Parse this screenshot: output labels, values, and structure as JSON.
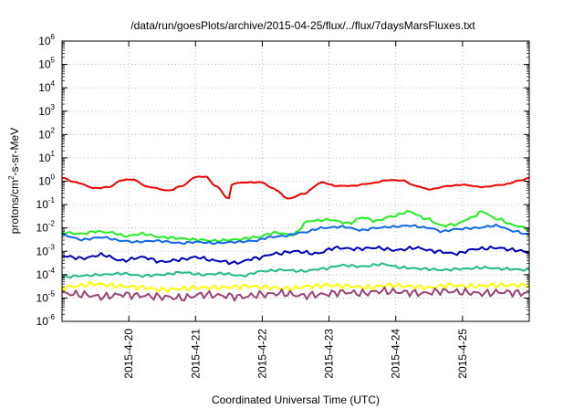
{
  "chart_data": {
    "type": "line",
    "title": "/data/run/goesPlots/archive/2015-04-25/flux/../flux/7daysMarsFluxes.txt",
    "xlabel": "Coordinated Universal Time (UTC)",
    "ylabel": {
      "prefix": "protons/cm",
      "sup": "2",
      "suffix": "-s-sr-MeV"
    },
    "y_scale": "log",
    "ylim_exp": [
      -6,
      6
    ],
    "y_tick_base": "10",
    "y_tick_exponents": [
      "6",
      "5",
      "4",
      "3",
      "2",
      "1",
      "0",
      "-1",
      "-2",
      "-3",
      "-4",
      "-5",
      "-6"
    ],
    "x_tick_labels": [
      "2015-4-20",
      "2015-4-21",
      "2015-4-22",
      "2015-4-23",
      "2015-4-24",
      "2015-4-25"
    ],
    "x_range_days": [
      0,
      7
    ],
    "x_tick_days": [
      1,
      2,
      3,
      4,
      5,
      6
    ],
    "grid": true,
    "legend": "none",
    "series_colors": [
      "#ee0000",
      "#22ee22",
      "#1166ee",
      "#0000bb",
      "#22bb88",
      "#ffff00",
      "#994477"
    ],
    "series_wobble": [
      0.02,
      0.06,
      0.05,
      0.08,
      0.06,
      0.12,
      0.18
    ],
    "series_keypoints": [
      [
        [
          0,
          0.15
        ],
        [
          0.2,
          -0.05
        ],
        [
          0.5,
          -0.3
        ],
        [
          0.7,
          -0.25
        ],
        [
          0.9,
          0.05
        ],
        [
          1.05,
          0.08
        ],
        [
          1.3,
          -0.25
        ],
        [
          1.6,
          -0.4
        ],
        [
          1.8,
          -0.2
        ],
        [
          2.0,
          0.18
        ],
        [
          2.15,
          0.2
        ],
        [
          2.3,
          -0.2
        ],
        [
          2.5,
          -0.75
        ],
        [
          2.55,
          -0.1
        ],
        [
          2.75,
          -0.05
        ],
        [
          3.0,
          -0.05
        ],
        [
          3.15,
          -0.3
        ],
        [
          3.4,
          -0.75
        ],
        [
          3.6,
          -0.55
        ],
        [
          3.9,
          -0.05
        ],
        [
          4.1,
          -0.2
        ],
        [
          4.35,
          -0.2
        ],
        [
          4.6,
          -0.1
        ],
        [
          4.9,
          0.05
        ],
        [
          5.1,
          0.03
        ],
        [
          5.3,
          -0.2
        ],
        [
          5.5,
          -0.35
        ],
        [
          5.8,
          -0.2
        ],
        [
          6.0,
          -0.15
        ],
        [
          6.3,
          -0.25
        ],
        [
          6.6,
          -0.15
        ],
        [
          6.9,
          0.05
        ],
        [
          7.0,
          0.15
        ]
      ],
      [
        [
          0,
          -2.2
        ],
        [
          0.3,
          -2.25
        ],
        [
          0.5,
          -2.15
        ],
        [
          0.75,
          -2.2
        ],
        [
          0.95,
          -2.35
        ],
        [
          1.2,
          -2.25
        ],
        [
          1.5,
          -2.4
        ],
        [
          1.8,
          -2.45
        ],
        [
          2.0,
          -2.5
        ],
        [
          2.3,
          -2.55
        ],
        [
          2.6,
          -2.5
        ],
        [
          2.9,
          -2.4
        ],
        [
          3.2,
          -2.2
        ],
        [
          3.45,
          -2.3
        ],
        [
          3.7,
          -1.7
        ],
        [
          4.0,
          -1.65
        ],
        [
          4.3,
          -1.8
        ],
        [
          4.5,
          -1.55
        ],
        [
          4.7,
          -1.7
        ],
        [
          4.95,
          -1.5
        ],
        [
          5.2,
          -1.3
        ],
        [
          5.45,
          -1.6
        ],
        [
          5.7,
          -1.9
        ],
        [
          5.9,
          -1.85
        ],
        [
          6.1,
          -1.6
        ],
        [
          6.3,
          -1.3
        ],
        [
          6.5,
          -1.6
        ],
        [
          6.8,
          -1.9
        ],
        [
          7.0,
          -2.05
        ]
      ],
      [
        [
          0,
          -2.3
        ],
        [
          0.3,
          -2.5
        ],
        [
          0.6,
          -2.4
        ],
        [
          0.9,
          -2.55
        ],
        [
          1.1,
          -2.6
        ],
        [
          1.4,
          -2.55
        ],
        [
          1.8,
          -2.65
        ],
        [
          2.0,
          -2.6
        ],
        [
          2.3,
          -2.65
        ],
        [
          2.6,
          -2.6
        ],
        [
          2.9,
          -2.55
        ],
        [
          3.1,
          -2.4
        ],
        [
          3.3,
          -2.35
        ],
        [
          3.6,
          -2.2
        ],
        [
          3.9,
          -2.0
        ],
        [
          4.2,
          -1.95
        ],
        [
          4.5,
          -2.1
        ],
        [
          4.7,
          -2.0
        ],
        [
          4.95,
          -1.95
        ],
        [
          5.2,
          -1.9
        ],
        [
          5.5,
          -2.0
        ],
        [
          5.7,
          -2.15
        ],
        [
          5.9,
          -2.05
        ],
        [
          6.2,
          -2.0
        ],
        [
          6.5,
          -1.9
        ],
        [
          6.8,
          -2.15
        ],
        [
          7.0,
          -2.3
        ]
      ],
      [
        [
          0,
          -3.2
        ],
        [
          0.3,
          -3.3
        ],
        [
          0.6,
          -3.15
        ],
        [
          0.9,
          -3.4
        ],
        [
          1.2,
          -3.25
        ],
        [
          1.5,
          -3.45
        ],
        [
          1.8,
          -3.35
        ],
        [
          2.0,
          -3.25
        ],
        [
          2.3,
          -3.4
        ],
        [
          2.6,
          -3.5
        ],
        [
          2.9,
          -3.3
        ],
        [
          3.2,
          -3.1
        ],
        [
          3.5,
          -3.0
        ],
        [
          3.8,
          -3.1
        ],
        [
          4.1,
          -2.85
        ],
        [
          4.4,
          -2.9
        ],
        [
          4.7,
          -2.85
        ],
        [
          5.0,
          -2.95
        ],
        [
          5.3,
          -2.85
        ],
        [
          5.6,
          -3.0
        ],
        [
          5.9,
          -3.1
        ],
        [
          6.2,
          -2.9
        ],
        [
          6.5,
          -2.85
        ],
        [
          6.8,
          -2.95
        ],
        [
          7.0,
          -3.05
        ]
      ],
      [
        [
          0,
          -4.1
        ],
        [
          0.3,
          -4.05
        ],
        [
          0.6,
          -4.0
        ],
        [
          0.9,
          -3.95
        ],
        [
          1.2,
          -4.05
        ],
        [
          1.5,
          -4.0
        ],
        [
          1.8,
          -3.9
        ],
        [
          2.1,
          -4.0
        ],
        [
          2.4,
          -3.95
        ],
        [
          2.7,
          -4.05
        ],
        [
          3.0,
          -3.85
        ],
        [
          3.3,
          -3.8
        ],
        [
          3.6,
          -3.85
        ],
        [
          3.9,
          -3.75
        ],
        [
          4.2,
          -3.6
        ],
        [
          4.5,
          -3.65
        ],
        [
          4.8,
          -3.55
        ],
        [
          5.1,
          -3.7
        ],
        [
          5.4,
          -3.75
        ],
        [
          5.7,
          -3.8
        ],
        [
          6.0,
          -3.75
        ],
        [
          6.3,
          -3.7
        ],
        [
          6.6,
          -3.75
        ],
        [
          7.0,
          -3.8
        ]
      ],
      [
        [
          0,
          -4.55
        ],
        [
          0.5,
          -4.4
        ],
        [
          0.9,
          -4.5
        ],
        [
          1.2,
          -4.55
        ],
        [
          1.5,
          -4.65
        ],
        [
          1.8,
          -4.6
        ],
        [
          2.1,
          -4.55
        ],
        [
          2.4,
          -4.55
        ],
        [
          2.8,
          -4.5
        ],
        [
          3.1,
          -4.55
        ],
        [
          3.4,
          -4.6
        ],
        [
          3.7,
          -4.5
        ],
        [
          4.0,
          -4.45
        ],
        [
          4.3,
          -4.5
        ],
        [
          4.6,
          -4.55
        ],
        [
          4.9,
          -4.45
        ],
        [
          5.2,
          -4.5
        ],
        [
          5.5,
          -4.55
        ],
        [
          5.8,
          -4.45
        ],
        [
          6.1,
          -4.5
        ],
        [
          6.5,
          -4.45
        ],
        [
          7.0,
          -4.45
        ]
      ],
      [
        [
          0,
          -4.8
        ],
        [
          0.3,
          -4.85
        ],
        [
          0.6,
          -4.95
        ],
        [
          0.9,
          -4.85
        ],
        [
          1.2,
          -4.9
        ],
        [
          1.5,
          -4.95
        ],
        [
          1.8,
          -5.0
        ],
        [
          2.1,
          -4.85
        ],
        [
          2.4,
          -4.9
        ],
        [
          2.7,
          -4.95
        ],
        [
          3.0,
          -4.85
        ],
        [
          3.3,
          -4.8
        ],
        [
          3.6,
          -4.9
        ],
        [
          3.9,
          -4.85
        ],
        [
          4.2,
          -4.75
        ],
        [
          4.5,
          -4.8
        ],
        [
          4.8,
          -4.7
        ],
        [
          5.1,
          -4.75
        ],
        [
          5.4,
          -4.8
        ],
        [
          5.7,
          -4.7
        ],
        [
          6.0,
          -4.75
        ],
        [
          6.3,
          -4.8
        ],
        [
          6.6,
          -4.75
        ],
        [
          7.0,
          -4.8
        ]
      ]
    ]
  }
}
